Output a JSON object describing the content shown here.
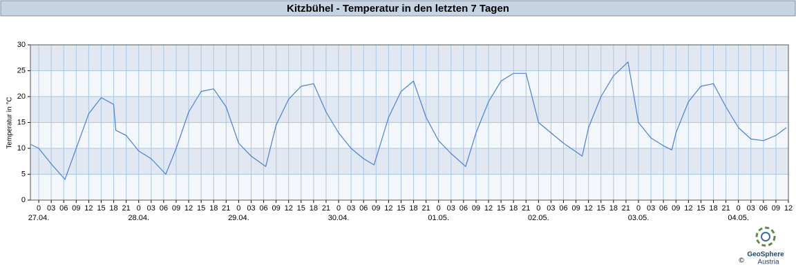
{
  "chart_data": {
    "type": "line",
    "title": "Kitzbühel - Temperatur in den letzten 7 Tagen",
    "ylabel": "Temperatur in °C",
    "logo": {
      "name": "GeoSphere",
      "sub": "Austria",
      "copyright": "©"
    },
    "series": [
      {
        "name": "Temperatur",
        "color": "#4a7fd4",
        "x": [
          -2,
          0,
          3,
          6.3,
          9,
          12,
          15,
          18,
          18.5,
          21,
          24,
          27,
          30.5,
          33,
          36,
          39,
          42,
          45,
          48,
          51,
          54.5,
          57,
          60,
          63,
          66,
          69,
          72,
          75,
          78,
          80.5,
          84,
          87,
          90,
          93,
          96,
          99,
          102.5,
          105,
          108,
          111,
          114,
          117,
          120,
          123,
          126,
          130.5,
          132,
          135,
          138,
          141.5,
          144,
          147,
          150,
          152,
          153,
          156,
          159,
          162,
          165,
          168,
          171,
          174,
          177,
          179.5
        ],
        "values": [
          10.8,
          10,
          7,
          4,
          10,
          16.7,
          19.8,
          18.5,
          13.5,
          12.5,
          9.5,
          8,
          5,
          10,
          17,
          21,
          21.5,
          18,
          11,
          8.5,
          6.5,
          14.5,
          19.5,
          22,
          22.5,
          17,
          13,
          10,
          8,
          6.8,
          16,
          21,
          23,
          16,
          11.5,
          9,
          6.5,
          13,
          19,
          23,
          24.5,
          24.5,
          15,
          13,
          11,
          8.5,
          14,
          20,
          24,
          26.7,
          15,
          12,
          10.5,
          9.7,
          13,
          19,
          22,
          22.5,
          18,
          14,
          11.8,
          11.5,
          12.5,
          14
        ]
      }
    ],
    "xlim": [
      -2,
      180
    ],
    "xticks": [
      0,
      {
        "value": 3,
        "label": "03"
      },
      {
        "value": 6,
        "label": "06"
      },
      {
        "value": 9,
        "label": "09"
      },
      12,
      15,
      18,
      21,
      {
        "value": 24,
        "label": "0"
      },
      {
        "value": 27,
        "label": "03"
      },
      {
        "value": 30,
        "label": "06"
      },
      {
        "value": 33,
        "label": "09"
      },
      {
        "value": 36,
        "label": "12"
      },
      {
        "value": 39,
        "label": "15"
      },
      {
        "value": 42,
        "label": "18"
      },
      {
        "value": 45,
        "label": "21"
      },
      {
        "value": 48,
        "label": "0"
      },
      {
        "value": 51,
        "label": "03"
      },
      {
        "value": 54,
        "label": "06"
      },
      {
        "value": 57,
        "label": "09"
      },
      {
        "value": 60,
        "label": "12"
      },
      {
        "value": 63,
        "label": "15"
      },
      {
        "value": 66,
        "label": "18"
      },
      {
        "value": 69,
        "label": "21"
      },
      {
        "value": 72,
        "label": "0"
      },
      {
        "value": 75,
        "label": "03"
      },
      {
        "value": 78,
        "label": "06"
      },
      {
        "value": 81,
        "label": "09"
      },
      {
        "value": 84,
        "label": "12"
      },
      {
        "value": 87,
        "label": "15"
      },
      {
        "value": 90,
        "label": "18"
      },
      {
        "value": 93,
        "label": "21"
      },
      {
        "value": 96,
        "label": "0"
      },
      {
        "value": 99,
        "label": "03"
      },
      {
        "value": 102,
        "label": "06"
      },
      {
        "value": 105,
        "label": "09"
      },
      {
        "value": 108,
        "label": "12"
      },
      {
        "value": 111,
        "label": "15"
      },
      {
        "value": 114,
        "label": "18"
      },
      {
        "value": 117,
        "label": "21"
      },
      {
        "value": 120,
        "label": "0"
      },
      {
        "value": 123,
        "label": "03"
      },
      {
        "value": 126,
        "label": "06"
      },
      {
        "value": 129,
        "label": "09"
      },
      {
        "value": 132,
        "label": "12"
      },
      {
        "value": 135,
        "label": "15"
      },
      {
        "value": 138,
        "label": "18"
      },
      {
        "value": 141,
        "label": "21"
      },
      {
        "value": 144,
        "label": "0"
      },
      {
        "value": 147,
        "label": "03"
      },
      {
        "value": 150,
        "label": "06"
      },
      {
        "value": 153,
        "label": "09"
      },
      {
        "value": 156,
        "label": "12"
      },
      {
        "value": 159,
        "label": "15"
      },
      {
        "value": 162,
        "label": "18"
      },
      {
        "value": 165,
        "label": "21"
      },
      {
        "value": 168,
        "label": "0"
      },
      {
        "value": 171,
        "label": "03"
      },
      {
        "value": 174,
        "label": "06"
      },
      {
        "value": 177,
        "label": "09"
      },
      {
        "value": 180,
        "label": "12"
      }
    ],
    "date_labels": [
      {
        "value": 0,
        "label": "27.04."
      },
      {
        "value": 24,
        "label": "28.04."
      },
      {
        "value": 48,
        "label": "29.04."
      },
      {
        "value": 72,
        "label": "30.04."
      },
      {
        "value": 96,
        "label": "01.05."
      },
      {
        "value": 120,
        "label": "02.05."
      },
      {
        "value": 144,
        "label": "03.05."
      },
      {
        "value": 168,
        "label": "04.05."
      }
    ],
    "ylim": [
      0,
      30
    ],
    "yticks": [
      0,
      5,
      10,
      15,
      20,
      25,
      30
    ],
    "grid": true,
    "band_colors": [
      "#f3f6fa",
      "#e2e8f1"
    ],
    "grid_color": "#a9c6e4"
  }
}
